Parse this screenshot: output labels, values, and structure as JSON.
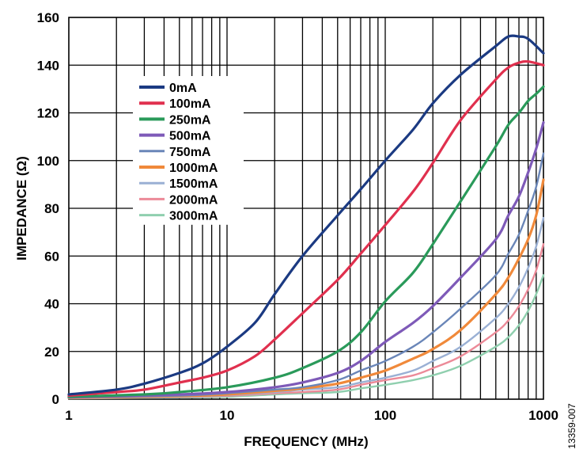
{
  "figure_id": "13359-007",
  "chart_data": {
    "type": "line",
    "xlabel": "FREQUENCY (MHz)",
    "ylabel": "IMPEDANCE (Ω)",
    "x_scale": "log",
    "xlim": [
      1,
      1000
    ],
    "ylim": [
      0,
      160
    ],
    "x_ticks": [
      "1",
      "10",
      "100",
      "1000"
    ],
    "y_ticks": [
      "0",
      "20",
      "40",
      "60",
      "80",
      "100",
      "120",
      "140",
      "160"
    ],
    "grid": true,
    "legend_position": "upper-left",
    "series": [
      {
        "name": "0mA",
        "color": "#1b3a82",
        "points": [
          [
            1,
            2
          ],
          [
            2,
            4
          ],
          [
            3,
            6.5
          ],
          [
            5,
            11
          ],
          [
            7,
            15
          ],
          [
            10,
            22
          ],
          [
            15,
            32
          ],
          [
            20,
            44
          ],
          [
            30,
            60
          ],
          [
            50,
            77
          ],
          [
            70,
            88
          ],
          [
            100,
            100
          ],
          [
            150,
            113
          ],
          [
            200,
            124
          ],
          [
            300,
            136
          ],
          [
            500,
            148
          ],
          [
            600,
            152
          ],
          [
            700,
            152
          ],
          [
            800,
            151
          ],
          [
            1000,
            145
          ]
        ]
      },
      {
        "name": "100mA",
        "color": "#e0304e",
        "points": [
          [
            1,
            1.5
          ],
          [
            2,
            3
          ],
          [
            3,
            4
          ],
          [
            5,
            7
          ],
          [
            7,
            9
          ],
          [
            10,
            12
          ],
          [
            15,
            18
          ],
          [
            20,
            25
          ],
          [
            30,
            36
          ],
          [
            50,
            50
          ],
          [
            70,
            61
          ],
          [
            100,
            73
          ],
          [
            150,
            87
          ],
          [
            200,
            99
          ],
          [
            300,
            117
          ],
          [
            500,
            134
          ],
          [
            600,
            139
          ],
          [
            700,
            141
          ],
          [
            800,
            141.5
          ],
          [
            1000,
            140
          ]
        ]
      },
      {
        "name": "250mA",
        "color": "#2a9a5a",
        "points": [
          [
            1,
            1
          ],
          [
            3,
            2
          ],
          [
            5,
            3
          ],
          [
            10,
            5
          ],
          [
            20,
            9
          ],
          [
            30,
            13
          ],
          [
            50,
            20
          ],
          [
            70,
            28
          ],
          [
            100,
            41
          ],
          [
            150,
            53
          ],
          [
            200,
            65
          ],
          [
            300,
            83
          ],
          [
            500,
            106
          ],
          [
            600,
            115
          ],
          [
            700,
            120
          ],
          [
            800,
            125
          ],
          [
            900,
            128
          ],
          [
            1000,
            131
          ]
        ]
      },
      {
        "name": "500mA",
        "color": "#7e5ab8",
        "points": [
          [
            1,
            0.8
          ],
          [
            5,
            2
          ],
          [
            10,
            3
          ],
          [
            20,
            5
          ],
          [
            30,
            7
          ],
          [
            50,
            11
          ],
          [
            70,
            16
          ],
          [
            100,
            24
          ],
          [
            150,
            32
          ],
          [
            200,
            39
          ],
          [
            300,
            51
          ],
          [
            500,
            67
          ],
          [
            600,
            77
          ],
          [
            700,
            85
          ],
          [
            800,
            95
          ],
          [
            900,
            105
          ],
          [
            1000,
            116
          ]
        ]
      },
      {
        "name": "750mA",
        "color": "#6a86b8",
        "points": [
          [
            1,
            0.7
          ],
          [
            5,
            1.5
          ],
          [
            10,
            2.5
          ],
          [
            20,
            4
          ],
          [
            30,
            5
          ],
          [
            50,
            8
          ],
          [
            70,
            12
          ],
          [
            100,
            16
          ],
          [
            150,
            22
          ],
          [
            200,
            28
          ],
          [
            300,
            38
          ],
          [
            500,
            52
          ],
          [
            600,
            61
          ],
          [
            700,
            69
          ],
          [
            800,
            79
          ],
          [
            900,
            89
          ],
          [
            1000,
            103
          ]
        ]
      },
      {
        "name": "1000mA",
        "color": "#f0893a",
        "points": [
          [
            1,
            0.6
          ],
          [
            5,
            1.3
          ],
          [
            10,
            2
          ],
          [
            20,
            3.5
          ],
          [
            30,
            4.5
          ],
          [
            50,
            6.5
          ],
          [
            70,
            9
          ],
          [
            100,
            12
          ],
          [
            150,
            17
          ],
          [
            200,
            21
          ],
          [
            300,
            29
          ],
          [
            500,
            44
          ],
          [
            600,
            51
          ],
          [
            700,
            59
          ],
          [
            800,
            67
          ],
          [
            900,
            77
          ],
          [
            1000,
            92
          ]
        ]
      },
      {
        "name": "1500mA",
        "color": "#9ab0d4",
        "points": [
          [
            1,
            0.5
          ],
          [
            5,
            1
          ],
          [
            10,
            1.7
          ],
          [
            20,
            3
          ],
          [
            30,
            4
          ],
          [
            50,
            5
          ],
          [
            70,
            7
          ],
          [
            100,
            9
          ],
          [
            150,
            12
          ],
          [
            200,
            16
          ],
          [
            300,
            22
          ],
          [
            500,
            34
          ],
          [
            600,
            40
          ],
          [
            700,
            47
          ],
          [
            800,
            55
          ],
          [
            900,
            64
          ],
          [
            1000,
            76
          ]
        ]
      },
      {
        "name": "2000mA",
        "color": "#ec8a98",
        "points": [
          [
            1,
            0.4
          ],
          [
            5,
            0.9
          ],
          [
            10,
            1.4
          ],
          [
            20,
            2.5
          ],
          [
            30,
            3
          ],
          [
            50,
            4
          ],
          [
            70,
            6
          ],
          [
            100,
            8
          ],
          [
            150,
            10
          ],
          [
            200,
            13
          ],
          [
            300,
            18
          ],
          [
            500,
            28
          ],
          [
            600,
            33
          ],
          [
            700,
            39
          ],
          [
            800,
            46
          ],
          [
            900,
            54
          ],
          [
            1000,
            65
          ]
        ]
      },
      {
        "name": "3000mA",
        "color": "#8fcfae",
        "points": [
          [
            1,
            0.3
          ],
          [
            5,
            0.7
          ],
          [
            10,
            1
          ],
          [
            20,
            2
          ],
          [
            30,
            2.5
          ],
          [
            50,
            3
          ],
          [
            70,
            4.5
          ],
          [
            100,
            6
          ],
          [
            150,
            8
          ],
          [
            200,
            10
          ],
          [
            300,
            14
          ],
          [
            500,
            22
          ],
          [
            600,
            26
          ],
          [
            700,
            31
          ],
          [
            800,
            37
          ],
          [
            900,
            44
          ],
          [
            1000,
            52
          ]
        ]
      }
    ]
  }
}
